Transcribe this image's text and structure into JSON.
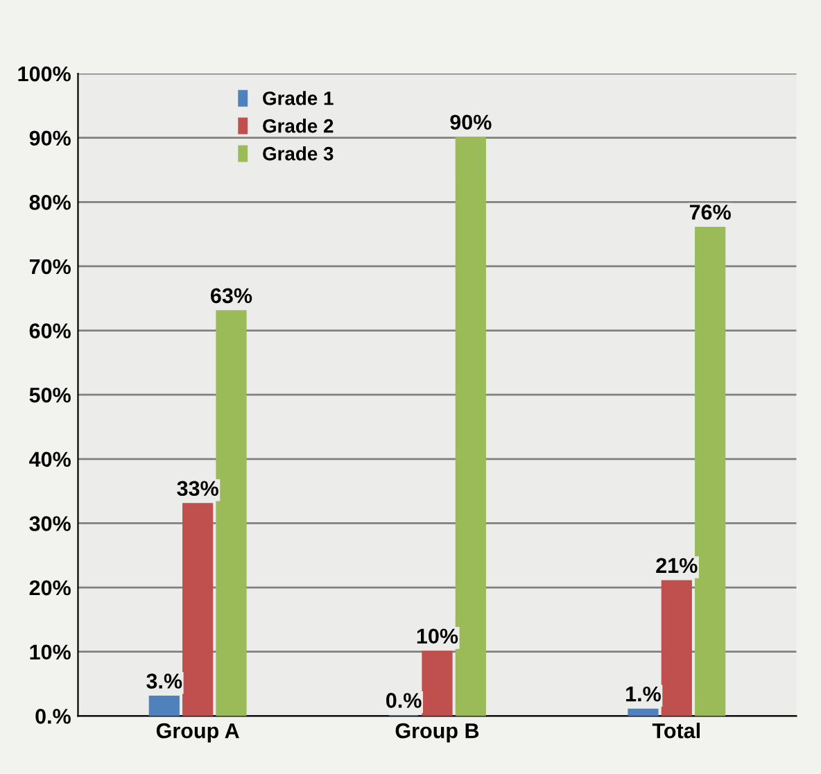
{
  "chart_data": {
    "type": "bar",
    "categories": [
      "Group A",
      "Group B",
      "Total"
    ],
    "series": [
      {
        "name": "Grade 1",
        "color": "#4f81bd",
        "values": [
          3,
          0,
          1
        ],
        "value_labels": [
          "3.%",
          "0.%",
          "1.%"
        ]
      },
      {
        "name": "Grade 2",
        "color": "#c0504d",
        "values": [
          33,
          10,
          21
        ],
        "value_labels": [
          "33%",
          "10%",
          "21%"
        ]
      },
      {
        "name": "Grade 3",
        "color": "#9bbb59",
        "values": [
          63,
          90,
          76
        ],
        "value_labels": [
          "63%",
          "90%",
          "76%"
        ]
      }
    ],
    "ylim": [
      0,
      100
    ],
    "yticks": [
      {
        "value": 0,
        "label": "0.%"
      },
      {
        "value": 10,
        "label": "10%"
      },
      {
        "value": 20,
        "label": "20%"
      },
      {
        "value": 30,
        "label": "30%"
      },
      {
        "value": 40,
        "label": "40%"
      },
      {
        "value": 50,
        "label": "50%"
      },
      {
        "value": 60,
        "label": "60%"
      },
      {
        "value": 70,
        "label": "70%"
      },
      {
        "value": 80,
        "label": "80%"
      },
      {
        "value": 90,
        "label": "90%"
      },
      {
        "value": 100,
        "label": "100%"
      }
    ],
    "grid": "y",
    "legend": "top left"
  }
}
